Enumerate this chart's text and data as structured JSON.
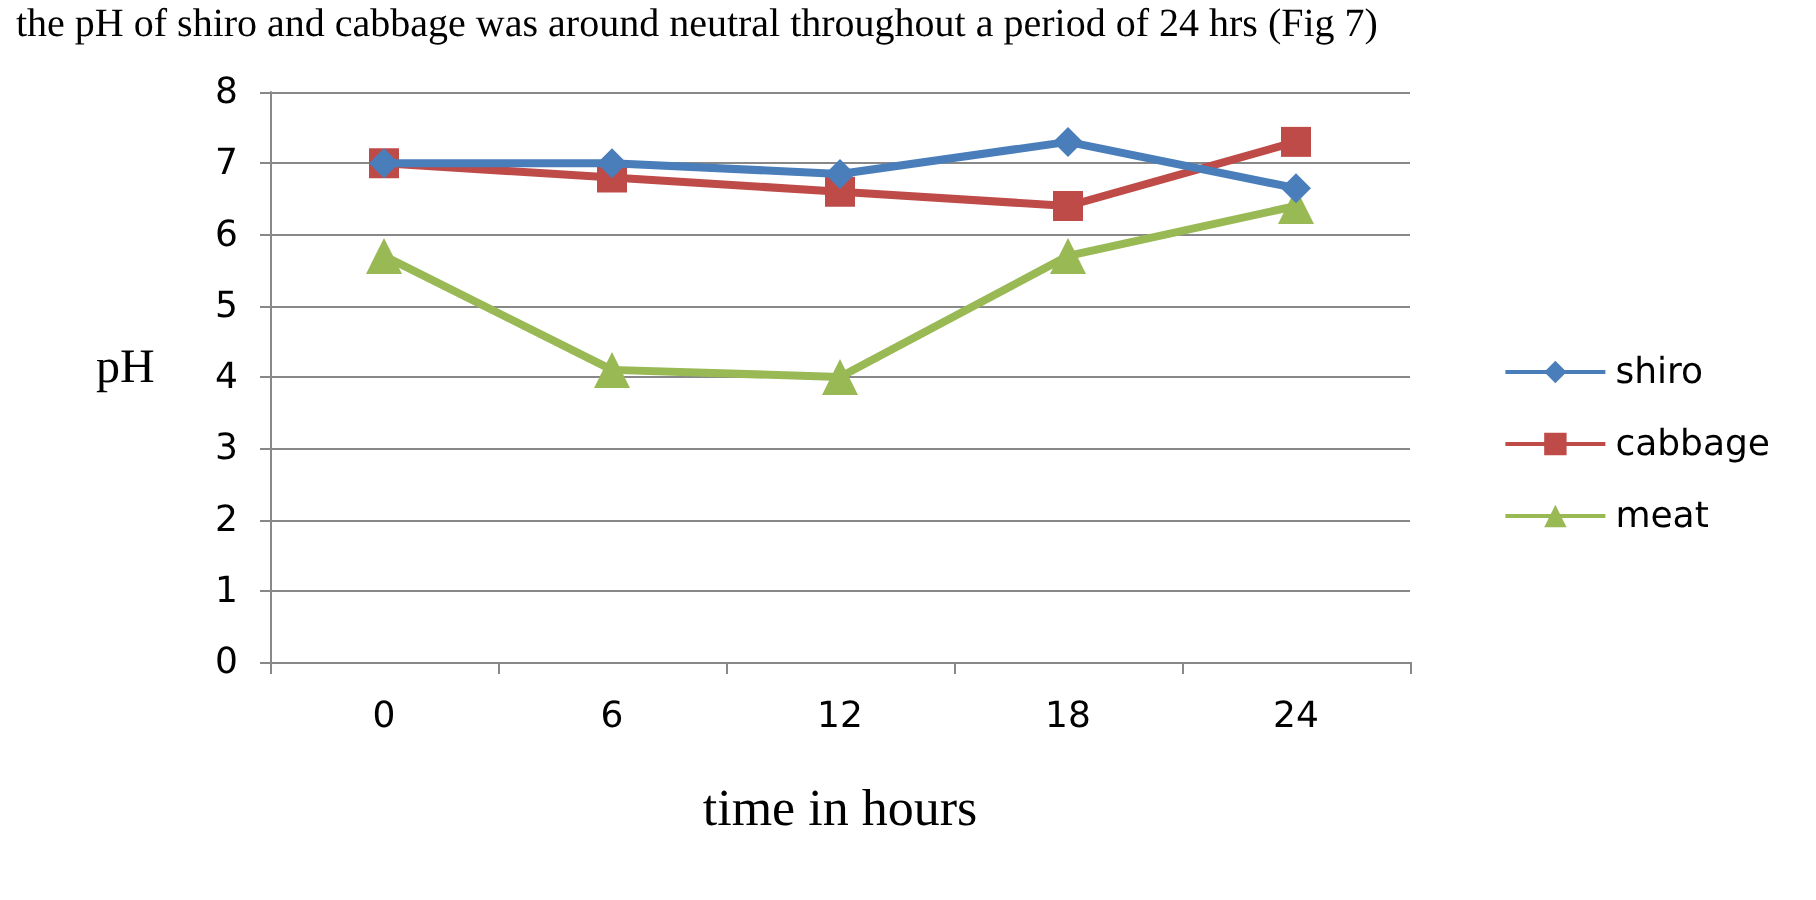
{
  "chart_data": {
    "type": "line",
    "annotations": [
      "the pH of shiro and cabbage was around neutral throughout a period of 24 hrs (Fig 7)"
    ],
    "xlabel": "time in hours",
    "ylabel": "pH",
    "categories": [
      "0",
      "6",
      "12",
      "18",
      "24"
    ],
    "ylim": [
      0,
      8
    ],
    "yticks": [
      0,
      1,
      2,
      3,
      4,
      5,
      6,
      7,
      8
    ],
    "grid": "y",
    "legend": "right",
    "series": [
      {
        "name": "shiro",
        "color": "#4a7ebb",
        "marker": "diamond",
        "values": [
          7.0,
          7.0,
          6.85,
          7.3,
          6.65
        ]
      },
      {
        "name": "cabbage",
        "color": "#be4b48",
        "marker": "square",
        "values": [
          7.0,
          6.8,
          6.6,
          6.4,
          7.3
        ]
      },
      {
        "name": "meat",
        "color": "#98b954",
        "marker": "triangle",
        "values": [
          5.7,
          4.1,
          4.0,
          5.7,
          6.4
        ]
      }
    ]
  }
}
